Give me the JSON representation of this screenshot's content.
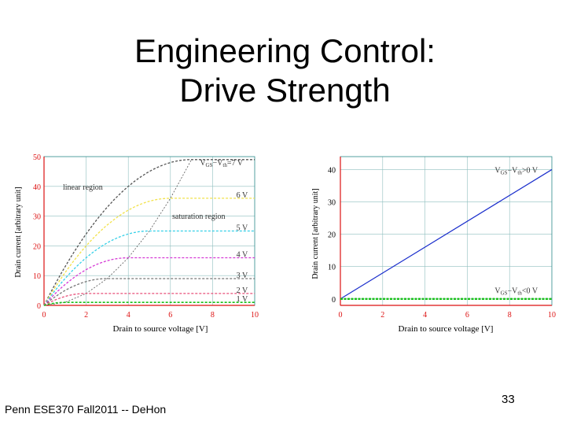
{
  "slide": {
    "title_line1": "Engineering Control:",
    "title_line2": "Drive Strength",
    "footer": "Penn ESE370 Fall2011 -- DeHon",
    "page_number": "33"
  },
  "colors": {
    "axis_red": "#dd1111",
    "grid": "#8fbfbf",
    "frame": "#2a8a8a",
    "curve_7": "#555555",
    "curve_6": "#f2e24a",
    "curve_5": "#34d0e8",
    "curve_4": "#d53ad5",
    "curve_3": "#777777",
    "curve_2": "#e8507a",
    "curve_1": "#18c018",
    "line_pos": "#1a2ecc",
    "line_neg": "#18c018"
  },
  "chart_data": [
    {
      "type": "line",
      "xlabel": "Drain to source voltage [V]",
      "ylabel": "Drain current [arbitrary unit]",
      "xlim": [
        0,
        10
      ],
      "ylim": [
        0,
        50
      ],
      "xticks": [
        "0",
        "2",
        "4",
        "6",
        "8",
        "10"
      ],
      "yticks": [
        "0",
        "10",
        "20",
        "30",
        "40",
        "50"
      ],
      "grid": true,
      "annotations": {
        "linear_region": "linear region",
        "saturation_region": "saturation region",
        "top_label": "V_GS−V_th=7 V"
      },
      "series": [
        {
          "name": "V_GS−V_th=7 V",
          "label": "V_GS−V_th=7 V",
          "vov": 7,
          "color_key": "curve_7"
        },
        {
          "name": "6 V",
          "label": "6 V",
          "vov": 6,
          "color_key": "curve_6"
        },
        {
          "name": "5 V",
          "label": "5 V",
          "vov": 5,
          "color_key": "curve_5"
        },
        {
          "name": "4 V",
          "label": "4 V",
          "vov": 4,
          "color_key": "curve_4"
        },
        {
          "name": "3 V",
          "label": "3 V",
          "vov": 3,
          "color_key": "curve_3"
        },
        {
          "name": "2 V",
          "label": "2 V",
          "vov": 2,
          "color_key": "curve_2"
        },
        {
          "name": "1 V",
          "label": "1 V",
          "vov": 1,
          "color_key": "curve_1"
        }
      ],
      "saturation_boundary": {
        "x": [
          0,
          1,
          2,
          3,
          4,
          5,
          6,
          7
        ],
        "y": [
          0,
          1,
          4,
          9,
          16,
          25,
          36,
          49
        ]
      },
      "model": "Id = 2*Vov*Vds - Vds^2 for Vds < Vov, Vov^2 otherwise"
    },
    {
      "type": "line",
      "xlabel": "Drain to source voltage [V]",
      "ylabel": "Drain current [arbitrary unit]",
      "xlim": [
        0,
        10
      ],
      "ylim": [
        -2,
        44
      ],
      "xticks": [
        "0",
        "2",
        "4",
        "6",
        "8",
        "10"
      ],
      "yticks": [
        "0",
        "10",
        "20",
        "30",
        "40"
      ],
      "grid": true,
      "series": [
        {
          "name": "V_GS−V_th>0 V",
          "label": "V_GS−V_th>0 V",
          "x": [
            0,
            10
          ],
          "y": [
            0,
            40
          ],
          "color_key": "line_pos"
        },
        {
          "name": "V_GS−V_th<0 V",
          "label": "V_GS−V_th<0 V",
          "x": [
            0,
            10
          ],
          "y": [
            0,
            0
          ],
          "color_key": "line_neg"
        }
      ]
    }
  ]
}
